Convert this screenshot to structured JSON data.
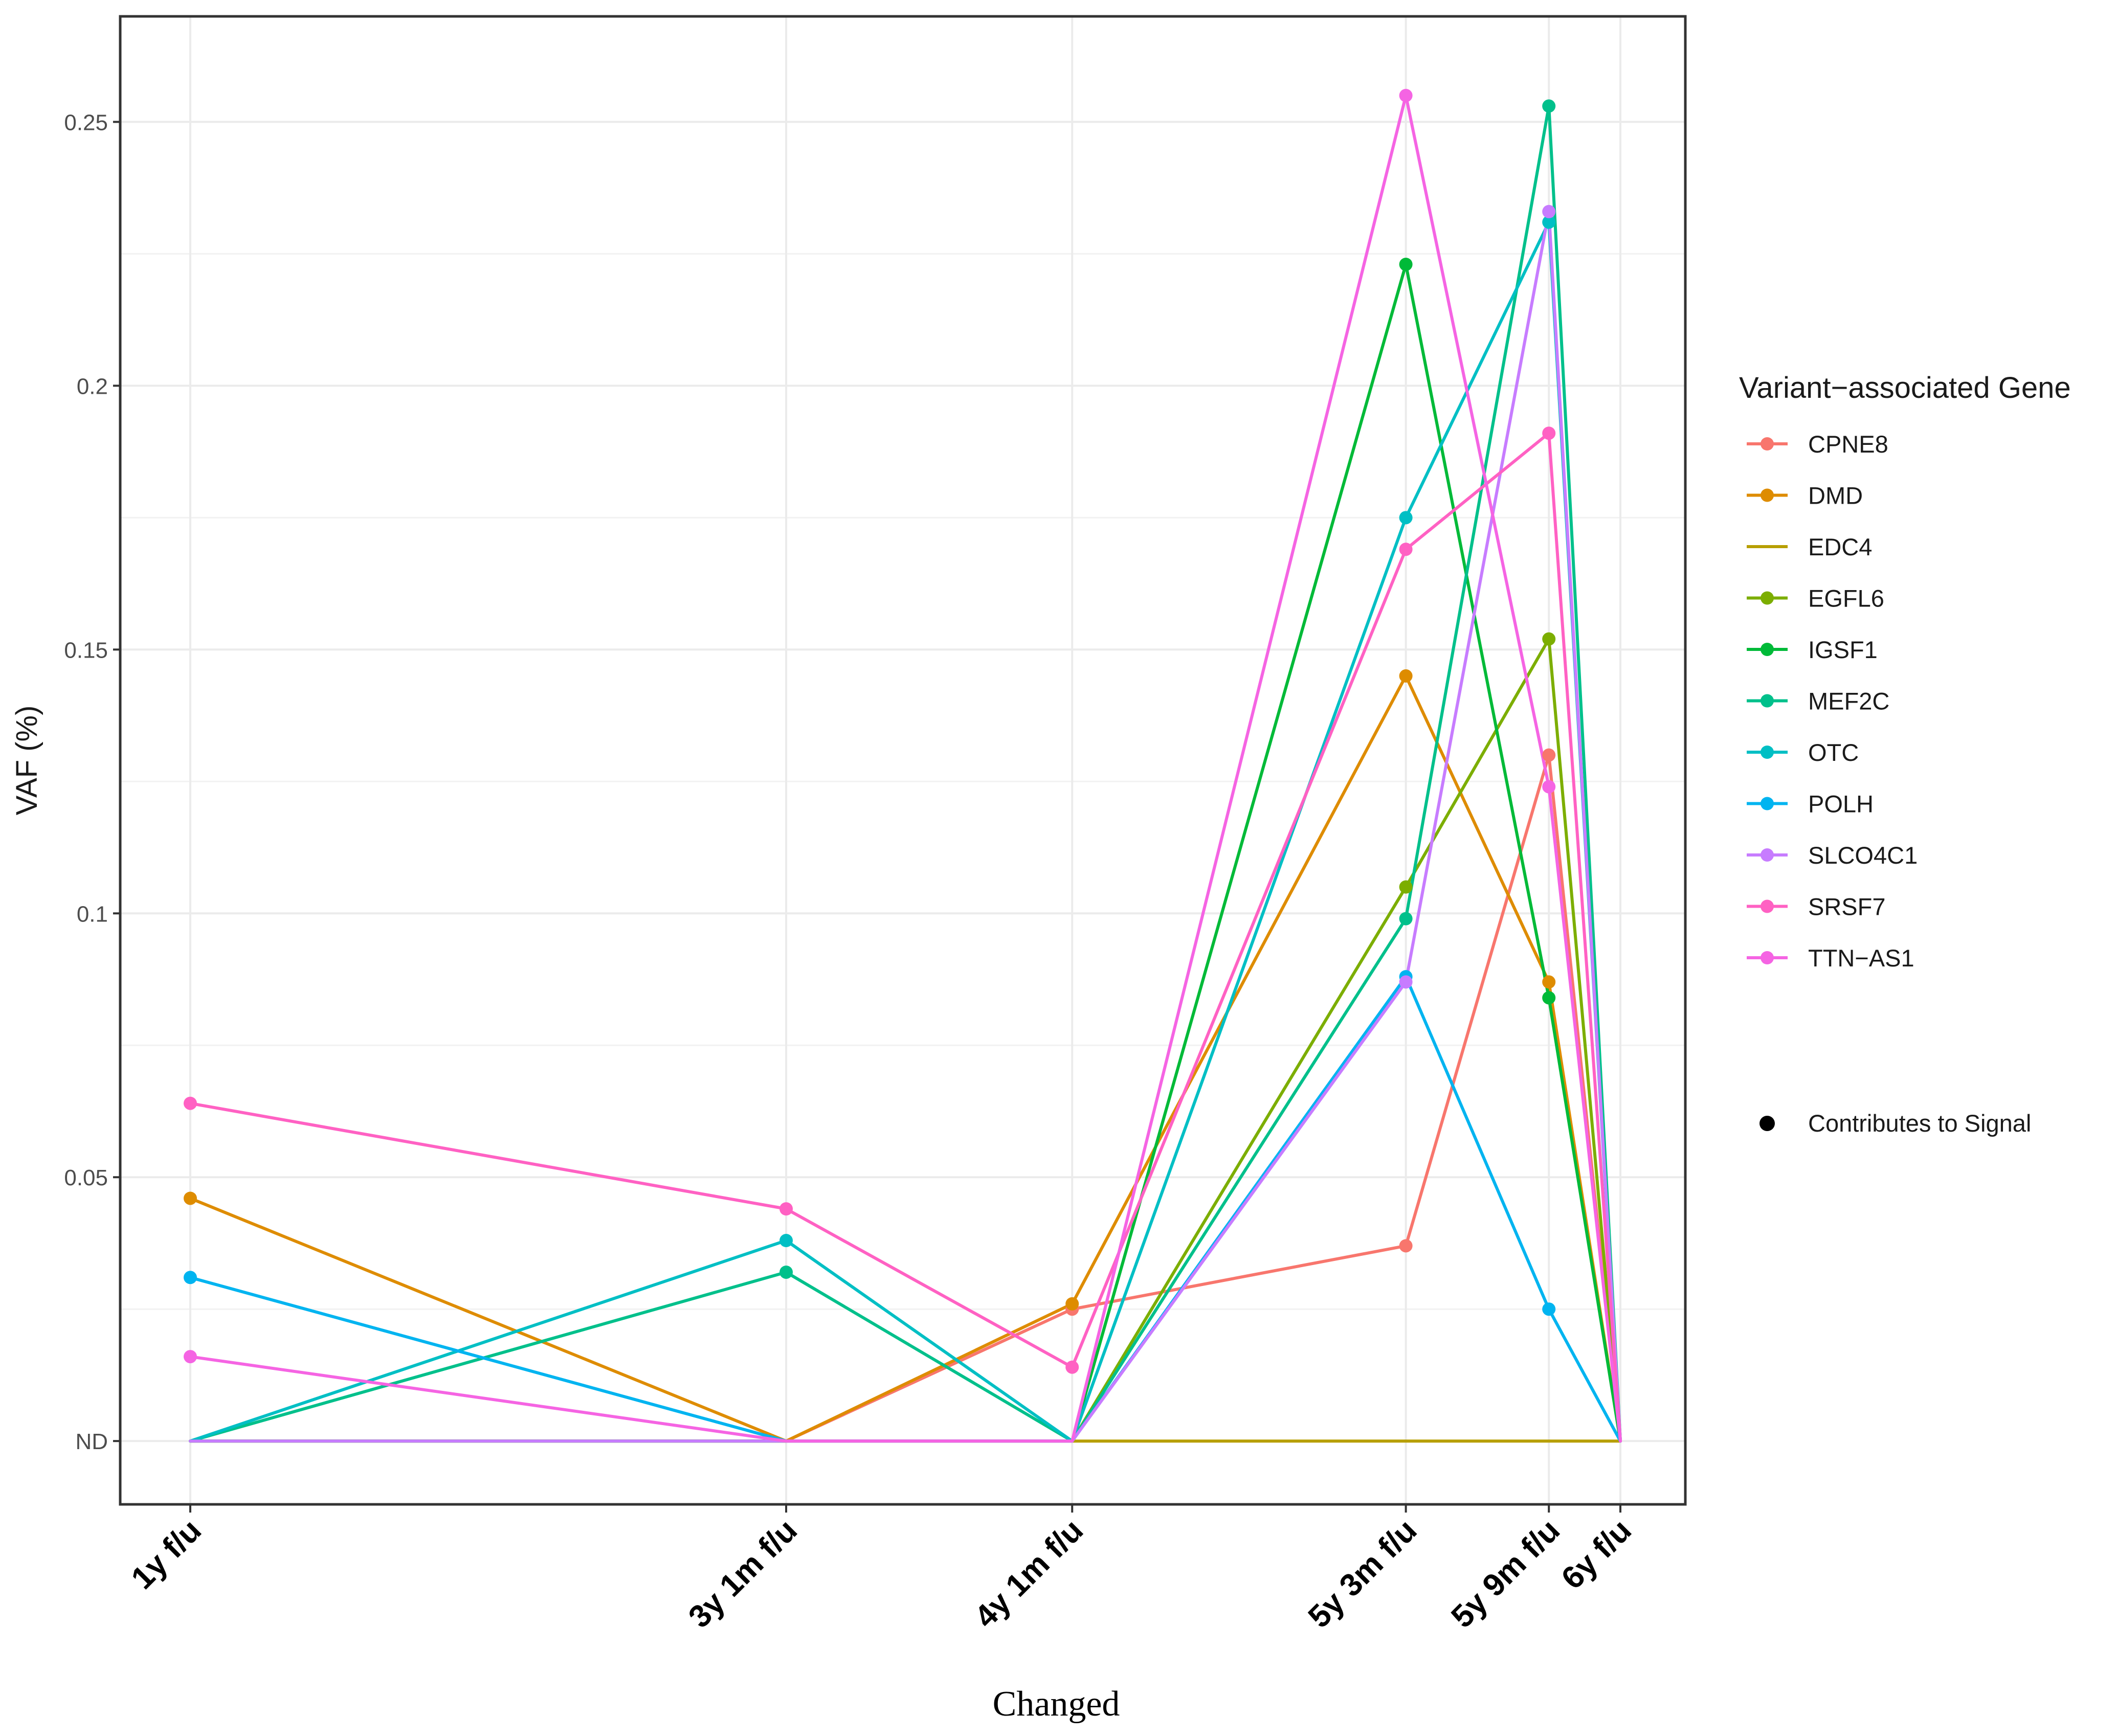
{
  "chart_data": {
    "type": "line",
    "title": "",
    "xlabel": "Changed",
    "ylabel": "VAF (%)",
    "categories": [
      "1y f/u",
      "3y 1m f/u",
      "4y 1m f/u",
      "5y 3m f/u",
      "5y 9m f/u",
      "6y f/u"
    ],
    "x_months": [
      12,
      37,
      49,
      63,
      69,
      72
    ],
    "y_tick_labels": [
      "ND",
      "0.05",
      "0.1",
      "0.15",
      "0.2",
      "0.25"
    ],
    "y_tick_values": [
      0,
      0.05,
      0.1,
      0.15,
      0.2,
      0.25
    ],
    "ylim": [
      -0.012,
      0.27
    ],
    "grid": true,
    "legend": {
      "title": "Variant−associated Gene",
      "position": "right",
      "shape_title": "Contributes to Signal"
    },
    "series": [
      {
        "name": "CPNE8",
        "color": "#F8766D",
        "values": [
          0,
          0,
          0.025,
          0.037,
          0.13,
          0
        ]
      },
      {
        "name": "DMD",
        "color": "#DE8C00",
        "values": [
          0.046,
          0,
          0.026,
          0.145,
          0.087,
          0
        ]
      },
      {
        "name": "EDC4",
        "color": "#B79F00",
        "values": [
          0,
          0,
          0,
          0,
          0,
          0
        ]
      },
      {
        "name": "EGFL6",
        "color": "#7CAE00",
        "values": [
          0,
          0,
          0,
          0.105,
          0.152,
          0
        ]
      },
      {
        "name": "IGSF1",
        "color": "#00BA38",
        "values": [
          0,
          0,
          0,
          0.223,
          0.084,
          0
        ]
      },
      {
        "name": "MEF2C",
        "color": "#00C08B",
        "values": [
          0,
          0.032,
          0,
          0.099,
          0.253,
          0
        ]
      },
      {
        "name": "OTC",
        "color": "#00BFC4",
        "values": [
          0,
          0.038,
          0,
          0.175,
          0.231,
          0
        ]
      },
      {
        "name": "POLH",
        "color": "#00B4F0",
        "values": [
          0.031,
          0,
          0,
          0.088,
          0.025,
          0
        ]
      },
      {
        "name": "SLCO4C1",
        "color": "#C77CFF",
        "values": [
          0,
          0,
          0,
          0.087,
          0.233,
          0
        ]
      },
      {
        "name": "SRSF7",
        "color": "#FF61C3",
        "values": [
          0.064,
          0.044,
          0.014,
          0.169,
          0.191,
          0
        ]
      },
      {
        "name": "TTN−AS1",
        "color": "#F564E3",
        "values": [
          0.016,
          0,
          0,
          0.255,
          0.124,
          0
        ]
      }
    ]
  }
}
